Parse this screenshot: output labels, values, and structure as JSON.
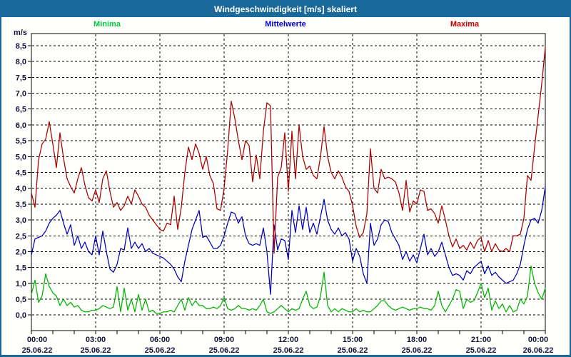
{
  "window": {
    "title": "Windgeschwindigkeit [m/s] skaliert"
  },
  "legend": {
    "minima": "Minima",
    "mittelwerte": "Mittelwerte",
    "maxima": "Maxima"
  },
  "axes": {
    "unit_label": "m/s",
    "y_tick_labels": [
      "0,0",
      "0,5",
      "1,0",
      "1,5",
      "2,0",
      "2,5",
      "3,0",
      "3,5",
      "4,0",
      "4,5",
      "5,0",
      "5,5",
      "6,0",
      "6,5",
      "7,0",
      "7,5",
      "8,0",
      "8,5"
    ],
    "x_ticks": [
      {
        "time": "00:00",
        "date": "25.06.22"
      },
      {
        "time": "03:00",
        "date": "25.06.22"
      },
      {
        "time": "06:00",
        "date": "25.06.22"
      },
      {
        "time": "09:00",
        "date": "25.06.22"
      },
      {
        "time": "12:00",
        "date": "25.06.22"
      },
      {
        "time": "15:00",
        "date": "25.06.22"
      },
      {
        "time": "18:00",
        "date": "25.06.22"
      },
      {
        "time": "21:00",
        "date": "25.06.22"
      },
      {
        "time": "00:00",
        "date": "26.06.22"
      }
    ]
  },
  "colors": {
    "titlebar": "#1a699b",
    "frame": "#000000",
    "grid": "#000000",
    "tick_text": "#14143a",
    "minima_line": "#00b400",
    "mittelwerte_line": "#0000bb",
    "maxima_line": "#aa0000",
    "minima_label": "#00cc44",
    "mittelwerte_label": "#0000dd",
    "maxima_label": "#cc0000"
  },
  "chart_data": {
    "type": "line",
    "title": "Windgeschwindigkeit [m/s] skaliert",
    "ylabel": "m/s",
    "xlabel": "",
    "ylim": [
      0,
      8.85
    ],
    "y_tick_step": 0.5,
    "x_range_hours": [
      0,
      24
    ],
    "x_step_minutes": 10,
    "grid": true,
    "legend_position": "top",
    "x_major_tick_hours": 3,
    "x_minor_tick_hours": 1,
    "series": [
      {
        "name": "Minima",
        "color_key": "minima_line",
        "values": [
          0.65,
          1.1,
          0.4,
          0.6,
          1.3,
          0.9,
          0.7,
          0.6,
          0.3,
          0.5,
          0.3,
          0.4,
          0.25,
          0.3,
          0.15,
          0.1,
          0.1,
          0.15,
          0.15,
          0.2,
          0.3,
          0.25,
          0.2,
          0.25,
          0.9,
          0.1,
          0.85,
          0.15,
          0.5,
          0.1,
          0.65,
          0.15,
          0.5,
          0.1,
          0.15,
          0.05,
          0.05,
          0.1,
          0.1,
          0.15,
          0.1,
          0.3,
          0.5,
          0.15,
          0.55,
          0.3,
          0.45,
          0.3,
          0.3,
          0.2,
          0.2,
          0.25,
          0.2,
          0.3,
          0.55,
          0.2,
          0.15,
          0.2,
          0.3,
          0.2,
          0.2,
          0.15,
          0.2,
          0.15,
          0.3,
          0.5,
          0.1,
          0.05,
          0.1,
          0.2,
          0.3,
          0.2,
          0.1,
          0.2,
          0.15,
          0.2,
          0.5,
          0.75,
          0.3,
          0.2,
          0.25,
          0.6,
          1.35,
          0.3,
          0.1,
          0.2,
          0.1,
          0.2,
          0.15,
          0.1,
          0.1,
          0.2,
          0.1,
          0.15,
          0.1,
          0.1,
          0.2,
          0.3,
          0.45,
          0.45,
          0.3,
          0.2,
          0.15,
          0.2,
          0.25,
          0.2,
          0.15,
          0.2,
          0.2,
          0.25,
          0.2,
          0.2,
          0.15,
          0.3,
          0.75,
          0.3,
          0.1,
          0.3,
          0.5,
          0.8,
          0.75,
          0.2,
          0.5,
          0.4,
          0.45,
          0.7,
          1.0,
          0.55,
          0.85,
          0.15,
          0.45,
          0.2,
          0.35,
          0.1,
          0.3,
          0.1,
          0.15,
          0.5,
          0.35,
          0.6,
          1.55,
          1.0,
          0.7,
          0.5,
          0.85
        ]
      },
      {
        "name": "Mittelwerte",
        "color_key": "mittelwerte_line",
        "values": [
          1.9,
          2.4,
          2.45,
          2.5,
          2.65,
          2.9,
          3.05,
          3.15,
          3.3,
          2.9,
          2.55,
          2.85,
          2.2,
          2.5,
          2.1,
          2.3,
          2.0,
          1.9,
          2.5,
          1.9,
          2.65,
          2.0,
          1.45,
          1.35,
          1.6,
          2.1,
          2.05,
          2.75,
          2.1,
          2.3,
          2.1,
          2.25,
          2.0,
          2.1,
          1.95,
          1.9,
          1.85,
          1.8,
          1.7,
          1.6,
          1.45,
          1.2,
          1.05,
          1.7,
          2.2,
          2.7,
          3.0,
          3.3,
          2.45,
          2.5,
          2.3,
          2.1,
          2.1,
          2.2,
          2.5,
          2.9,
          3.25,
          3.2,
          2.9,
          3.1,
          2.5,
          2.25,
          2.2,
          2.25,
          2.2,
          2.75,
          2.0,
          0.65,
          2.85,
          2.05,
          2.4,
          2.35,
          1.75,
          3.3,
          2.6,
          3.45,
          2.7,
          3.4,
          2.6,
          2.9,
          2.55,
          3.1,
          3.65,
          3.0,
          2.7,
          2.55,
          2.75,
          2.5,
          2.6,
          2.4,
          1.7,
          2.1,
          1.85,
          1.3,
          1.0,
          2.9,
          2.2,
          2.4,
          2.85,
          3.0,
          2.95,
          2.6,
          2.4,
          2.2,
          1.75,
          2.0,
          1.7,
          1.9,
          1.65,
          2.1,
          2.55,
          1.9,
          2.1,
          1.85,
          2.0,
          2.3,
          1.9,
          1.5,
          1.25,
          1.3,
          1.25,
          1.1,
          1.4,
          1.3,
          1.5,
          1.6,
          1.7,
          1.3,
          1.55,
          1.25,
          1.35,
          1.2,
          1.1,
          1.0,
          1.05,
          1.1,
          1.3,
          1.6,
          2.2,
          2.7,
          3.0,
          3.05,
          2.9,
          3.3,
          4.05
        ]
      },
      {
        "name": "Maxima",
        "color_key": "maxima_line",
        "values": [
          3.85,
          3.4,
          4.9,
          5.4,
          5.55,
          6.1,
          5.4,
          4.65,
          5.75,
          4.95,
          4.3,
          4.05,
          3.85,
          4.3,
          4.65,
          4.1,
          3.7,
          3.6,
          3.95,
          3.55,
          4.3,
          4.55,
          3.9,
          3.4,
          3.55,
          3.3,
          3.45,
          3.75,
          3.5,
          3.95,
          3.75,
          3.5,
          3.4,
          3.15,
          3.0,
          2.85,
          2.7,
          2.65,
          2.9,
          2.85,
          3.75,
          2.7,
          3.4,
          4.5,
          5.3,
          4.9,
          5.4,
          5.1,
          4.6,
          5.0,
          4.4,
          4.15,
          3.35,
          3.3,
          4.0,
          5.2,
          6.75,
          6.2,
          5.5,
          4.9,
          5.5,
          5.35,
          4.2,
          5.05,
          4.3,
          5.8,
          6.7,
          6.6,
          1.95,
          4.35,
          4.65,
          5.75,
          3.9,
          5.8,
          4.3,
          6.0,
          5.0,
          4.6,
          4.7,
          4.4,
          4.3,
          5.0,
          5.95,
          5.0,
          4.5,
          4.3,
          4.55,
          4.35,
          4.05,
          3.9,
          3.45,
          2.8,
          2.45,
          2.6,
          3.2,
          5.25,
          4.0,
          3.85,
          4.6,
          4.3,
          4.35,
          4.3,
          4.2,
          3.85,
          3.3,
          4.25,
          3.25,
          3.6,
          3.5,
          3.95,
          3.9,
          3.3,
          3.35,
          3.2,
          2.9,
          3.45,
          3.0,
          2.5,
          2.15,
          2.4,
          2.1,
          2.2,
          2.05,
          2.3,
          2.1,
          2.35,
          2.45,
          2.0,
          2.35,
          2.0,
          2.25,
          2.05,
          2.0,
          2.1,
          2.0,
          2.5,
          2.5,
          2.55,
          3.05,
          4.4,
          4.25,
          5.3,
          6.3,
          7.3,
          8.45
        ]
      }
    ]
  }
}
